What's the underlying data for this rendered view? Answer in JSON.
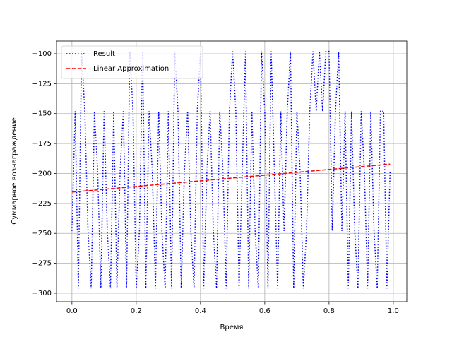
{
  "chart_data": {
    "type": "line",
    "xlabel": "Время",
    "ylabel": "Суммарное вознаграждение",
    "xlim": [
      -0.048,
      1.042
    ],
    "ylim": [
      -307.1,
      -89.4
    ],
    "xticks": [
      {
        "value": 0,
        "label": "0.0"
      },
      0.2,
      0.4,
      0.6,
      0.8,
      {
        "value": 1,
        "label": "1.0"
      }
    ],
    "yticks": [
      {
        "value": -300,
        "label": "−300"
      },
      {
        "value": -275,
        "label": "−275"
      },
      {
        "value": -250,
        "label": "−250"
      },
      {
        "value": -225,
        "label": "−225"
      },
      {
        "value": -200,
        "label": "−200"
      },
      {
        "value": -175,
        "label": "−175"
      },
      {
        "value": -150,
        "label": "−150"
      },
      {
        "value": -125,
        "label": "−125"
      },
      {
        "value": -100,
        "label": "−100"
      }
    ],
    "grid": true,
    "legend": "upper left",
    "series": [
      {
        "name": "Result",
        "color": "#0000ff",
        "style": "dotted",
        "x": [
          0,
          0.01,
          0.02,
          0.03,
          0.04,
          0.05,
          0.06,
          0.07,
          0.08,
          0.09,
          0.1,
          0.11,
          0.12,
          0.13,
          0.14,
          0.15,
          0.16,
          0.17,
          0.18,
          0.19,
          0.2,
          0.21,
          0.22,
          0.23,
          0.24,
          0.25,
          0.26,
          0.27,
          0.28,
          0.29,
          0.3,
          0.31,
          0.32,
          0.33,
          0.34,
          0.35,
          0.36,
          0.37,
          0.38,
          0.39,
          0.4,
          0.41,
          0.42,
          0.43,
          0.44,
          0.45,
          0.46,
          0.47,
          0.48,
          0.49,
          0.5,
          0.51,
          0.52,
          0.53,
          0.54,
          0.55,
          0.56,
          0.57,
          0.58,
          0.59,
          0.6,
          0.61,
          0.62,
          0.63,
          0.64,
          0.65,
          0.66,
          0.67,
          0.68,
          0.69,
          0.7,
          0.71,
          0.72,
          0.73,
          0.74,
          0.75,
          0.76,
          0.77,
          0.78,
          0.79,
          0.8,
          0.81,
          0.82,
          0.83,
          0.84,
          0.85,
          0.86,
          0.87,
          0.88,
          0.89,
          0.9,
          0.91,
          0.92,
          0.93,
          0.94,
          0.95,
          0.96,
          0.97,
          0.98,
          0.99
        ],
        "values": [
          -248,
          -148,
          -296,
          -98,
          -148,
          -248,
          -296,
          -148,
          -198,
          -296,
          -148,
          -248,
          -296,
          -148,
          -296,
          -198,
          -148,
          -296,
          -98,
          -148,
          -296,
          -248,
          -98,
          -296,
          -148,
          -198,
          -296,
          -148,
          -248,
          -296,
          -148,
          -296,
          -98,
          -148,
          -296,
          -198,
          -148,
          -248,
          -296,
          -148,
          -98,
          -296,
          -198,
          -148,
          -248,
          -296,
          -148,
          -198,
          -296,
          -148,
          -98,
          -148,
          -296,
          -198,
          -98,
          -296,
          -148,
          -248,
          -296,
          -98,
          -148,
          -296,
          -98,
          -198,
          -296,
          -148,
          -248,
          -148,
          -98,
          -296,
          -148,
          -198,
          -296,
          -248,
          -148,
          -98,
          -148,
          -98,
          -148,
          -98,
          -98,
          -248,
          -148,
          -98,
          -248,
          -148,
          -296,
          -148,
          -248,
          -296,
          -148,
          -198,
          -296,
          -148,
          -248,
          -296,
          -148,
          -148,
          -296,
          -198
        ]
      },
      {
        "name": "Linear Approximation",
        "color": "#ff0000",
        "style": "dashed",
        "x": [
          0,
          0.99
        ],
        "values": [
          -215.6,
          -192.2
        ]
      }
    ]
  }
}
